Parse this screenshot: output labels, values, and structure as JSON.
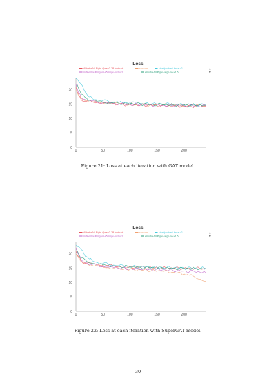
{
  "captions": [
    "Figure 21: Loss at each iteration with GAT model.",
    "Figure 22: Loss at each iteration with SuperGAT model."
  ],
  "page_number": "30",
  "chart_data": [
    {
      "type": "line",
      "title": "Loss",
      "xlabel": "",
      "ylabel": "",
      "xlim": [
        0,
        240
      ],
      "ylim": [
        0,
        24
      ],
      "xticks": [
        0,
        50,
        100,
        150,
        200
      ],
      "yticks": [
        0,
        5,
        10,
        15,
        20
      ],
      "grid": false,
      "legend_position": "top",
      "series": [
        {
          "name": "Alibaba-NLP/gte-Qwen2-7B-instruct",
          "color": "#e8525a",
          "x": [
            0,
            5,
            10,
            20,
            30,
            40,
            50,
            60,
            70,
            80,
            100,
            120,
            140,
            160,
            180,
            200,
            220,
            240
          ],
          "y": [
            21,
            18.5,
            16.5,
            16.0,
            15.8,
            15.6,
            15.4,
            15.3,
            15.2,
            15.0,
            14.8,
            14.7,
            14.6,
            14.5,
            14.4,
            14.3,
            14.3,
            14.2
          ]
        },
        {
          "name": "random",
          "color": "#f0a070",
          "x": [
            0,
            5,
            10,
            20,
            30,
            40,
            50,
            60,
            70,
            80,
            100,
            120,
            140,
            160,
            180,
            200,
            220,
            240
          ],
          "y": [
            20,
            18.0,
            17.0,
            16.2,
            15.8,
            15.6,
            15.4,
            15.3,
            15.2,
            15.1,
            15.0,
            14.9,
            14.8,
            14.7,
            14.7,
            14.6,
            14.6,
            14.6
          ]
        },
        {
          "name": "sinai/phobert-base-v2",
          "color": "#45c8dc",
          "x": [
            0,
            5,
            10,
            15,
            20,
            25,
            30,
            40,
            50,
            60,
            70,
            80,
            100,
            120,
            140,
            160,
            180,
            200,
            220,
            240
          ],
          "y": [
            24,
            23,
            22,
            20,
            18.5,
            17.5,
            17.0,
            16.5,
            16.2,
            16.0,
            15.8,
            15.6,
            15.4,
            15.2,
            15.1,
            15.0,
            14.9,
            14.8,
            14.7,
            14.7
          ]
        },
        {
          "name": "intfloat/multilingual-e5-large-instruct",
          "color": "#c060c8",
          "x": [
            0,
            5,
            10,
            20,
            30,
            40,
            50,
            60,
            70,
            80,
            100,
            120,
            140,
            160,
            180,
            200,
            220,
            240
          ],
          "y": [
            22,
            19,
            17.2,
            16.4,
            16.0,
            15.7,
            15.5,
            15.3,
            15.2,
            15.0,
            14.9,
            14.8,
            14.7,
            14.6,
            14.5,
            14.5,
            14.4,
            14.4
          ]
        },
        {
          "name": "Alibaba-NLP/gte-large-en-v1.5",
          "color": "#2a9e7a",
          "x": [
            0,
            5,
            10,
            20,
            30,
            40,
            50,
            60,
            70,
            80,
            100,
            120,
            140,
            160,
            180,
            200,
            220,
            240
          ],
          "y": [
            22,
            20.5,
            18.5,
            17.0,
            16.4,
            16.0,
            15.7,
            15.5,
            15.4,
            15.3,
            15.1,
            15.0,
            14.9,
            14.8,
            14.8,
            14.7,
            14.7,
            14.7
          ]
        }
      ]
    },
    {
      "type": "line",
      "title": "Loss",
      "xlabel": "",
      "ylabel": "",
      "xlim": [
        0,
        240
      ],
      "ylim": [
        0,
        24
      ],
      "xticks": [
        0,
        50,
        100,
        150,
        200
      ],
      "yticks": [
        0,
        5,
        10,
        15,
        20
      ],
      "grid": false,
      "legend_position": "top",
      "series": [
        {
          "name": "Alibaba-NLP/gte-Qwen2-7B-instruct",
          "color": "#e8525a",
          "x": [
            0,
            5,
            10,
            20,
            30,
            40,
            50,
            60,
            70,
            80,
            100,
            120,
            140,
            160,
            180,
            200,
            220,
            240
          ],
          "y": [
            21,
            19,
            17.5,
            16.8,
            16.4,
            16.2,
            16.0,
            15.9,
            15.8,
            15.6,
            15.4,
            15.3,
            15.2,
            15.1,
            15.0,
            15.0,
            14.9,
            14.9
          ]
        },
        {
          "name": "random",
          "color": "#f0a070",
          "x": [
            0,
            5,
            10,
            20,
            30,
            40,
            50,
            60,
            70,
            80,
            100,
            120,
            140,
            160,
            180,
            200,
            210,
            220,
            230,
            240
          ],
          "y": [
            20,
            18.5,
            17.2,
            16.5,
            16.0,
            15.7,
            15.4,
            15.2,
            15.0,
            14.8,
            14.6,
            14.4,
            14.2,
            14.0,
            13.6,
            13.0,
            12.5,
            11.9,
            11.2,
            10.5
          ]
        },
        {
          "name": "sinai/phobert-base-v2",
          "color": "#45c8dc",
          "x": [
            0,
            5,
            10,
            15,
            20,
            25,
            30,
            40,
            50,
            60,
            70,
            80,
            100,
            120,
            140,
            160,
            180,
            200,
            220,
            240
          ],
          "y": [
            23,
            22.5,
            21.5,
            20,
            19,
            18.2,
            17.6,
            17.0,
            16.6,
            16.3,
            16.1,
            15.9,
            15.6,
            15.4,
            15.3,
            15.2,
            15.1,
            15.0,
            15.0,
            14.9
          ]
        },
        {
          "name": "intfloat/multilingual-e5-large-instruct",
          "color": "#c060c8",
          "x": [
            0,
            5,
            10,
            20,
            30,
            40,
            50,
            60,
            70,
            80,
            100,
            120,
            140,
            160,
            180,
            200,
            220,
            240
          ],
          "y": [
            22,
            19.5,
            17.8,
            16.8,
            16.2,
            15.9,
            15.6,
            15.4,
            15.2,
            15.0,
            14.8,
            14.6,
            14.5,
            14.4,
            14.2,
            14.0,
            13.8,
            13.5
          ]
        },
        {
          "name": "Alibaba-NLP/gte-large-en-v1.5",
          "color": "#2a9e7a",
          "x": [
            0,
            5,
            10,
            20,
            30,
            40,
            50,
            60,
            70,
            80,
            100,
            120,
            140,
            160,
            180,
            200,
            220,
            240
          ],
          "y": [
            21,
            20,
            18.5,
            17.4,
            16.8,
            16.4,
            16.1,
            15.9,
            15.8,
            15.6,
            15.4,
            15.3,
            15.2,
            15.1,
            15.0,
            14.9,
            14.9,
            14.8
          ]
        }
      ]
    }
  ]
}
